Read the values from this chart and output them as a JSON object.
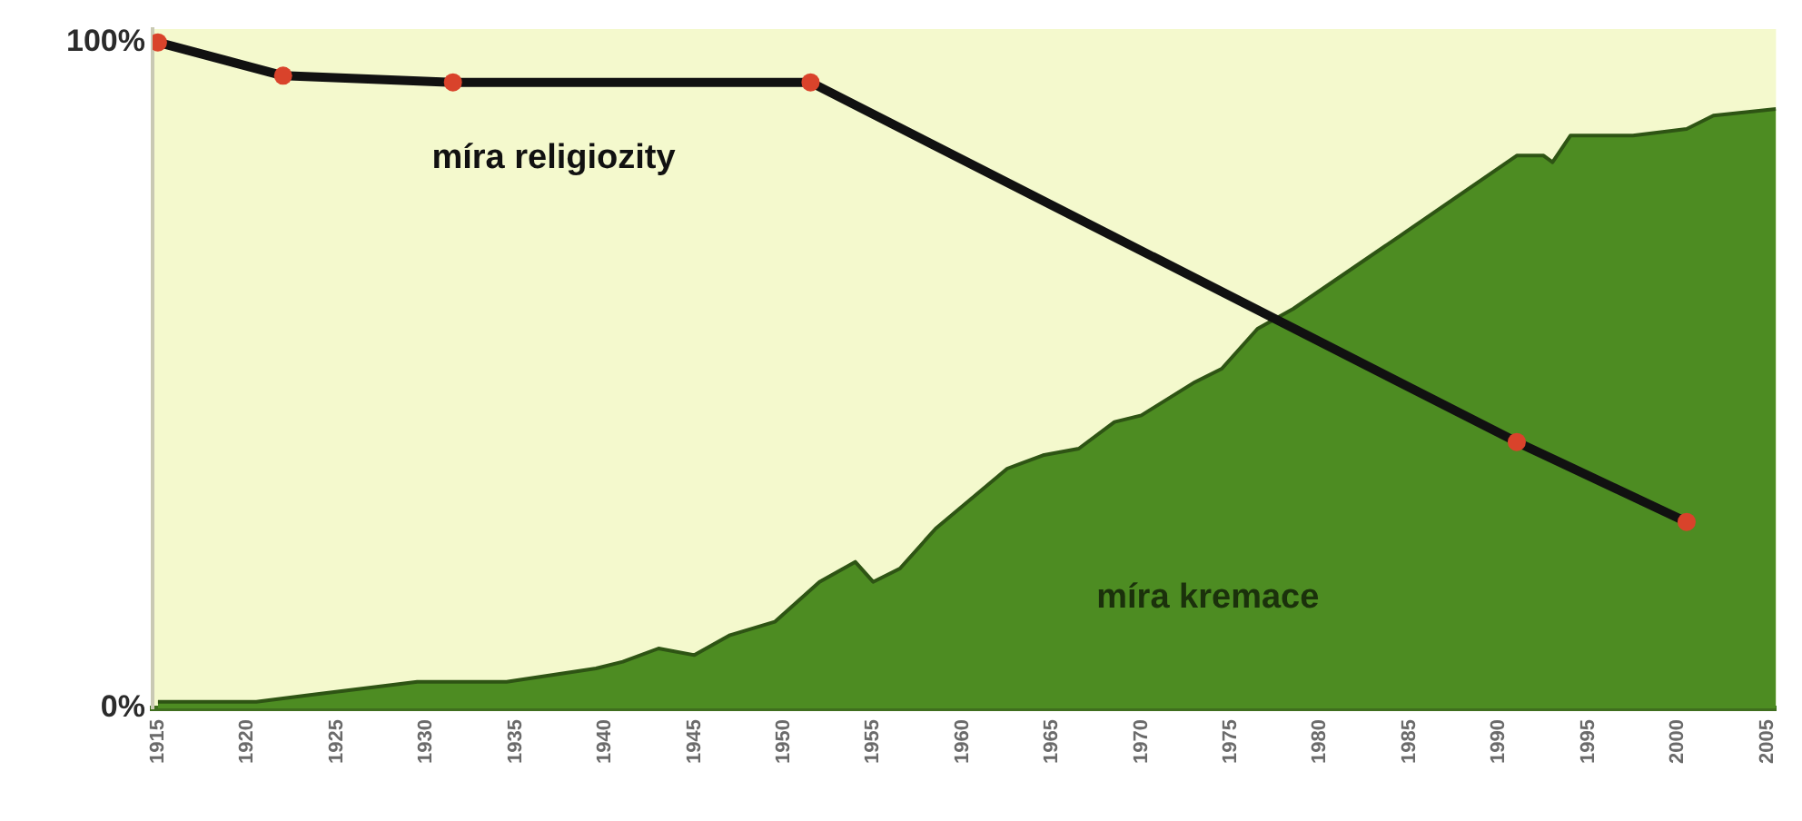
{
  "chart_data": {
    "type": "area",
    "series": [
      {
        "name": "míra kremace",
        "color": "#4d8c22",
        "x": [
          1915,
          1920.5,
          1923.5,
          1929.5,
          1934.5,
          1939.5,
          1941,
          1943,
          1945,
          1947,
          1949.5,
          1952,
          1954,
          1955,
          1956.5,
          1958.5,
          1962.5,
          1964.5,
          1966.5,
          1968.5,
          1970,
          1973,
          1974.5,
          1976.5,
          1978.5,
          1984.5,
          1991,
          1992.5,
          1993,
          1994,
          1997.5,
          2000.5,
          2002,
          2005.5
        ],
        "values": [
          1,
          1,
          2,
          4,
          4,
          6,
          7,
          9,
          8,
          11,
          13,
          19,
          22,
          19,
          21,
          27,
          36,
          38,
          39,
          43,
          44,
          49,
          51,
          57,
          60,
          71,
          83,
          83,
          82,
          86,
          86,
          87,
          89,
          90
        ]
      },
      {
        "name": "míra religiozity",
        "type": "line",
        "color": "#111111",
        "colors": [
          "#d9432b",
          "#d9432b",
          "#d9432b",
          "#d9432b",
          "#d9432b",
          "#d9432b"
        ],
        "marker": "circle",
        "x": [
          1915,
          1922,
          1931.5,
          1951.5,
          1991,
          2000.5
        ],
        "values": [
          100,
          95,
          94,
          94,
          40,
          28
        ]
      }
    ],
    "xlim": [
      1914.7,
      2005.5
    ],
    "xticks": [
      1915,
      1920,
      1925,
      1930,
      1935,
      1940,
      1945,
      1950,
      1955,
      1960,
      1965,
      1970,
      1975,
      1980,
      1985,
      1990,
      1995,
      2000,
      2005
    ],
    "ylim": [
      0,
      102
    ],
    "yticks": [
      {
        "value": 0,
        "label": "0%"
      },
      {
        "value": 100,
        "label": "100%"
      }
    ],
    "grid": false,
    "legend": false
  }
}
